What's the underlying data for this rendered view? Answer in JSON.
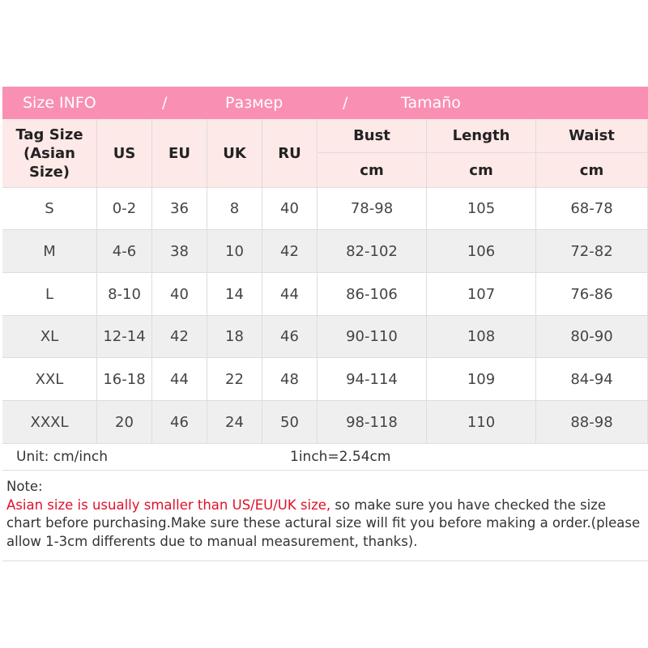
{
  "title": {
    "size_info": "Size INFO",
    "sep1": "/",
    "ru": "Размер",
    "sep2": "/",
    "es": "Tamaño"
  },
  "headers": {
    "tag": "Tag Size",
    "tag2": "(Asian Size)",
    "us": "US",
    "eu": "EU",
    "uk": "UK",
    "ru": "RU",
    "bust": "Bust",
    "length": "Length",
    "waist": "Waist",
    "unit": "cm"
  },
  "rows": [
    [
      "S",
      "0-2",
      "36",
      "8",
      "40",
      "78-98",
      "105",
      "68-78"
    ],
    [
      "M",
      "4-6",
      "38",
      "10",
      "42",
      "82-102",
      "106",
      "72-82"
    ],
    [
      "L",
      "8-10",
      "40",
      "14",
      "44",
      "86-106",
      "107",
      "76-86"
    ],
    [
      "XL",
      "12-14",
      "42",
      "18",
      "46",
      "90-110",
      "108",
      "80-90"
    ],
    [
      "XXL",
      "16-18",
      "44",
      "22",
      "48",
      "94-114",
      "109",
      "84-94"
    ],
    [
      "XXXL",
      "20",
      "46",
      "24",
      "50",
      "98-118",
      "110",
      "88-98"
    ]
  ],
  "unit_row": {
    "unit": "Unit: cm/inch",
    "conversion": "1inch=2.54cm"
  },
  "note": {
    "label": "Note:",
    "warning": "Asian size is usually smaller than US/EU/UK size,",
    "text": " so make sure you have checked the size chart before purchasing.Make sure these actural size will fit you before making a order.(please allow 1-3cm differents due to manual measurement, thanks)."
  },
  "colors": {
    "title_bg": "#f98fb3",
    "header_bg": "#fde9e7",
    "warning": "#e0102a",
    "row_alt": "#efefef"
  }
}
